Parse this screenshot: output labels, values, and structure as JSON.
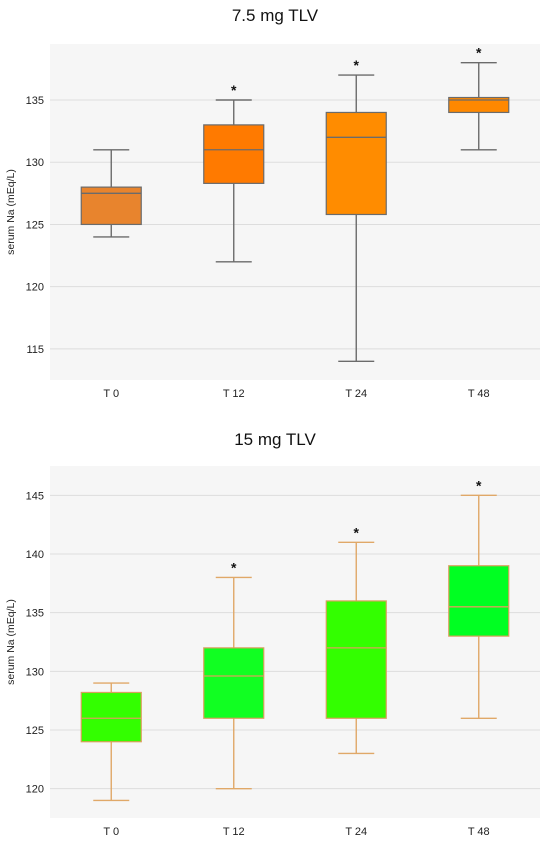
{
  "chart_data": [
    {
      "type": "box",
      "title": "7.5 mg TLV",
      "ylabel": "serum Na (mEq/L)",
      "xlabel": "",
      "categories": [
        "T 0",
        "T 12",
        "T 24",
        "T 48"
      ],
      "ylim": [
        112.5,
        139.5
      ],
      "yticks": [
        115,
        120,
        125,
        130,
        135
      ],
      "grid": true,
      "colors": {
        "box_fill": [
          "#e8842d",
          "#ff7a00",
          "#ff8c00",
          "#ff8800"
        ],
        "box_edge": "#6b6b6b",
        "median": "#6b6b6b",
        "whisker": "#6b6b6b",
        "plot_bg": "#f6f6f6",
        "grid": "#dddddd"
      },
      "boxes": [
        {
          "category": "T 0",
          "min": 124,
          "q1": 125,
          "median": 127.5,
          "q3": 128,
          "max": 131,
          "significant": false
        },
        {
          "category": "T 12",
          "min": 122,
          "q1": 128.3,
          "median": 131,
          "q3": 133,
          "max": 135,
          "significant": true
        },
        {
          "category": "T 24",
          "min": 114,
          "q1": 125.8,
          "median": 132,
          "q3": 134,
          "max": 137,
          "significant": true
        },
        {
          "category": "T 48",
          "min": 131,
          "q1": 134,
          "median": 135,
          "q3": 135.2,
          "max": 138,
          "significant": true
        }
      ],
      "significance_marker": "*"
    },
    {
      "type": "box",
      "title": "15 mg TLV",
      "ylabel": "serum Na (mEq/L)",
      "xlabel": "",
      "categories": [
        "T 0",
        "T 12",
        "T 24",
        "T 48"
      ],
      "ylim": [
        117.5,
        147.5
      ],
      "yticks": [
        120,
        125,
        130,
        135,
        140,
        145
      ],
      "grid": true,
      "colors": {
        "box_fill": [
          "#33ff00",
          "#11ff22",
          "#33ff00",
          "#00ff22"
        ],
        "box_edge": "#d9a05c",
        "median": "#d9a05c",
        "whisker": "#e0a868",
        "plot_bg": "#f6f6f6",
        "grid": "#dddddd"
      },
      "boxes": [
        {
          "category": "T 0",
          "min": 119,
          "q1": 124,
          "median": 126,
          "q3": 128.2,
          "max": 129,
          "significant": false
        },
        {
          "category": "T 12",
          "min": 120,
          "q1": 126,
          "median": 129.6,
          "q3": 132,
          "max": 138,
          "significant": true
        },
        {
          "category": "T 24",
          "min": 123,
          "q1": 126,
          "median": 132,
          "q3": 136,
          "max": 141,
          "significant": true
        },
        {
          "category": "T 48",
          "min": 126,
          "q1": 133,
          "median": 135.5,
          "q3": 139,
          "max": 145,
          "significant": true
        }
      ],
      "significance_marker": "*"
    }
  ]
}
